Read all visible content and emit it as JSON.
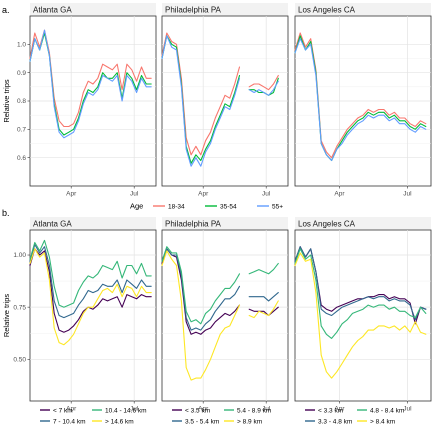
{
  "chart_data": [
    {
      "type": "line",
      "tag": "a.",
      "ylabel": "Relative trips",
      "ylim": [
        0.5,
        1.1
      ],
      "yticks": [
        0.6,
        0.7,
        0.8,
        0.9,
        1.0
      ],
      "ytick_labels": [
        "0.6",
        "0.7",
        "0.8",
        "0.9",
        "1.0"
      ],
      "xlim": [
        0,
        26
      ],
      "xticks": [
        {
          "x": 8.5,
          "label": "Apr"
        },
        {
          "x": 21.5,
          "label": "Jul"
        }
      ],
      "grid": true,
      "legend": {
        "title": "Age",
        "position": "bottom",
        "columns": 3
      },
      "series_meta": [
        {
          "name": "18-34",
          "color": "#F8766D"
        },
        {
          "name": "35-54",
          "color": "#00BA38"
        },
        {
          "name": "55+",
          "color": "#619CFF"
        }
      ],
      "facets": [
        {
          "title": "Atlanta GA",
          "x": [
            0,
            1,
            2,
            3,
            4,
            5,
            6,
            7,
            8,
            9,
            10,
            11,
            12,
            13,
            14,
            15,
            16,
            17,
            18,
            19,
            20,
            21,
            22,
            23,
            24,
            25
          ],
          "series": [
            [
              0.95,
              1.04,
              0.99,
              1.05,
              0.97,
              0.81,
              0.73,
              0.71,
              0.71,
              0.72,
              0.76,
              0.83,
              0.87,
              0.86,
              0.88,
              0.93,
              0.92,
              0.91,
              0.93,
              0.84,
              0.93,
              0.91,
              0.87,
              0.92,
              0.88,
              0.88
            ],
            [
              0.94,
              1.02,
              0.98,
              1.04,
              0.96,
              0.79,
              0.7,
              0.68,
              0.69,
              0.7,
              0.74,
              0.8,
              0.84,
              0.83,
              0.85,
              0.9,
              0.88,
              0.88,
              0.9,
              0.81,
              0.9,
              0.88,
              0.84,
              0.89,
              0.86,
              0.86
            ],
            [
              0.94,
              1.02,
              0.98,
              1.05,
              0.96,
              0.78,
              0.69,
              0.67,
              0.68,
              0.69,
              0.73,
              0.79,
              0.83,
              0.82,
              0.84,
              0.89,
              0.88,
              0.87,
              0.89,
              0.8,
              0.89,
              0.87,
              0.83,
              0.88,
              0.85,
              0.85
            ]
          ]
        },
        {
          "title": "Philadelphia PA",
          "x": [
            0,
            1,
            2,
            3,
            4,
            5,
            6,
            7,
            8,
            9,
            10,
            11,
            12,
            13,
            14,
            15,
            16,
            17,
            18,
            19,
            20,
            21,
            22,
            23,
            24,
            25
          ],
          "series": [
            [
              0.96,
              1.04,
              1.01,
              1.0,
              0.88,
              0.67,
              0.61,
              0.64,
              0.61,
              0.66,
              0.69,
              0.74,
              0.78,
              0.82,
              0.81,
              0.86,
              0.92,
              null,
              0.85,
              0.86,
              0.86,
              0.85,
              0.84,
              0.86,
              0.89,
              null
            ],
            [
              0.95,
              1.03,
              1.0,
              0.99,
              0.86,
              0.64,
              0.58,
              0.61,
              0.59,
              0.63,
              0.66,
              0.71,
              0.75,
              0.79,
              0.78,
              0.83,
              0.89,
              null,
              0.84,
              0.84,
              0.83,
              0.83,
              0.82,
              0.83,
              0.88,
              null
            ],
            [
              0.95,
              1.03,
              0.99,
              0.98,
              0.85,
              0.63,
              0.57,
              0.6,
              0.57,
              0.62,
              0.65,
              0.7,
              0.74,
              0.78,
              0.77,
              0.82,
              0.88,
              null,
              0.84,
              0.83,
              0.84,
              0.83,
              0.82,
              0.84,
              0.87,
              null
            ]
          ]
        },
        {
          "title": "Los Angeles CA",
          "x": [
            0,
            1,
            2,
            3,
            4,
            5,
            6,
            7,
            8,
            9,
            10,
            11,
            12,
            13,
            14,
            15,
            16,
            17,
            18,
            19,
            20,
            21,
            22,
            23,
            24,
            25
          ],
          "series": [
            [
              0.98,
              1.04,
              0.99,
              1.02,
              0.91,
              0.66,
              0.62,
              0.6,
              0.64,
              0.67,
              0.7,
              0.72,
              0.74,
              0.75,
              0.77,
              0.76,
              0.77,
              0.77,
              0.75,
              0.76,
              0.74,
              0.74,
              0.72,
              0.71,
              0.73,
              0.72
            ],
            [
              0.97,
              1.03,
              0.98,
              1.01,
              0.9,
              0.65,
              0.61,
              0.59,
              0.63,
              0.66,
              0.69,
              0.71,
              0.73,
              0.74,
              0.76,
              0.75,
              0.76,
              0.76,
              0.74,
              0.75,
              0.73,
              0.73,
              0.71,
              0.7,
              0.72,
              0.71
            ],
            [
              0.97,
              1.02,
              0.98,
              1.0,
              0.89,
              0.65,
              0.61,
              0.59,
              0.63,
              0.65,
              0.68,
              0.7,
              0.72,
              0.73,
              0.75,
              0.74,
              0.75,
              0.75,
              0.73,
              0.74,
              0.72,
              0.72,
              0.7,
              0.69,
              0.71,
              0.7
            ]
          ]
        }
      ]
    },
    {
      "type": "line",
      "tag": "b.",
      "ylabel": "Relative trips",
      "ylim": [
        0.3,
        1.12
      ],
      "yticks": [
        0.5,
        0.75,
        1.0
      ],
      "ytick_labels": [
        "0.50",
        "0.75",
        "1.00"
      ],
      "xlim": [
        0,
        26
      ],
      "xticks": [
        {
          "x": 8.5,
          "label": "Apr"
        },
        {
          "x": 21.5,
          "label": "Jul"
        }
      ],
      "grid": true,
      "legend": {
        "position": "bottom",
        "columns": 2
      },
      "facets": [
        {
          "title": "Atlanta GA",
          "legend_labels": [
            "< 7 km",
            "7 - 10.4 km",
            "10.4 - 14.6 km",
            "> 14.6 km"
          ],
          "colors": [
            "#440154",
            "#31688E",
            "#35B779",
            "#FDE725"
          ],
          "x": [
            0,
            1,
            2,
            3,
            4,
            5,
            6,
            7,
            8,
            9,
            10,
            11,
            12,
            13,
            14,
            15,
            16,
            17,
            18,
            19,
            20,
            21,
            22,
            23,
            24,
            25
          ],
          "series": [
            [
              0.95,
              1.03,
              1.0,
              1.02,
              0.92,
              0.72,
              0.64,
              0.63,
              0.64,
              0.66,
              0.69,
              0.73,
              0.75,
              0.74,
              0.76,
              0.79,
              0.78,
              0.79,
              0.8,
              0.75,
              0.81,
              0.8,
              0.79,
              0.81,
              0.8,
              0.8
            ],
            [
              0.97,
              1.05,
              1.01,
              1.04,
              0.95,
              0.78,
              0.71,
              0.7,
              0.71,
              0.72,
              0.76,
              0.79,
              0.83,
              0.82,
              0.83,
              0.86,
              0.85,
              0.85,
              0.88,
              0.82,
              0.88,
              0.86,
              0.84,
              0.88,
              0.85,
              0.85
            ],
            [
              0.98,
              1.06,
              1.02,
              1.07,
              0.99,
              0.85,
              0.76,
              0.75,
              0.76,
              0.77,
              0.83,
              0.87,
              0.9,
              0.89,
              0.91,
              0.95,
              0.94,
              0.93,
              0.97,
              0.89,
              0.95,
              0.95,
              0.91,
              0.96,
              0.9,
              0.9
            ],
            [
              0.96,
              1.03,
              0.99,
              1.01,
              0.88,
              0.65,
              0.58,
              0.57,
              0.59,
              0.62,
              0.67,
              0.72,
              0.75,
              0.75,
              0.79,
              0.83,
              0.84,
              0.82,
              0.86,
              0.8,
              0.85,
              0.84,
              0.8,
              0.85,
              0.82,
              0.82
            ]
          ]
        },
        {
          "title": "Philadelphia PA",
          "legend_labels": [
            "< 3.5 km",
            "3.5 - 5.4 km",
            "5.4 - 8.9 km",
            "> 8.9 km"
          ],
          "colors": [
            "#440154",
            "#31688E",
            "#35B779",
            "#FDE725"
          ],
          "x": [
            0,
            1,
            2,
            3,
            4,
            5,
            6,
            7,
            8,
            9,
            10,
            11,
            12,
            13,
            14,
            15,
            16,
            17,
            18,
            19,
            20,
            21,
            22,
            23,
            24,
            25
          ],
          "series": [
            [
              0.96,
              1.03,
              1.0,
              0.99,
              0.88,
              0.68,
              0.62,
              0.63,
              0.62,
              0.64,
              0.65,
              0.68,
              0.7,
              0.72,
              0.71,
              0.73,
              0.76,
              null,
              0.74,
              0.73,
              0.73,
              0.73,
              0.71,
              0.73,
              0.75,
              null
            ],
            [
              0.97,
              1.03,
              1.0,
              1.0,
              0.9,
              0.7,
              0.64,
              0.65,
              0.64,
              0.67,
              0.69,
              0.73,
              0.76,
              0.79,
              0.79,
              0.81,
              0.85,
              null,
              0.8,
              0.8,
              0.8,
              0.8,
              0.78,
              0.8,
              0.82,
              null
            ],
            [
              0.97,
              1.04,
              1.01,
              1.01,
              0.92,
              0.73,
              0.68,
              0.69,
              0.67,
              0.72,
              0.74,
              0.78,
              0.81,
              0.84,
              0.84,
              0.87,
              0.91,
              null,
              0.91,
              0.92,
              0.93,
              0.92,
              0.91,
              0.93,
              0.96,
              null
            ],
            [
              0.95,
              1.02,
              0.98,
              0.95,
              0.78,
              0.46,
              0.4,
              0.41,
              0.41,
              0.45,
              0.5,
              0.56,
              0.62,
              0.65,
              0.66,
              0.71,
              0.76,
              null,
              0.71,
              0.7,
              0.73,
              0.72,
              0.71,
              0.74,
              0.78,
              null
            ]
          ]
        },
        {
          "title": "Los Angeles CA",
          "legend_labels": [
            "< 3.3 km",
            "3.3 - 4.8 km",
            "4.8 - 8.4 km",
            "> 8.4 km"
          ],
          "colors": [
            "#440154",
            "#31688E",
            "#35B779",
            "#FDE725"
          ],
          "x": [
            0,
            1,
            2,
            3,
            4,
            5,
            6,
            7,
            8,
            9,
            10,
            11,
            12,
            13,
            14,
            15,
            16,
            17,
            18,
            19,
            20,
            21,
            22,
            23,
            24,
            25
          ],
          "series": [
            [
              0.97,
              1.04,
              0.99,
              1.03,
              0.92,
              0.76,
              0.74,
              0.73,
              0.75,
              0.76,
              0.77,
              0.78,
              0.79,
              0.79,
              0.8,
              0.8,
              0.81,
              0.81,
              0.79,
              0.8,
              0.79,
              0.79,
              0.77,
              0.67,
              0.75,
              0.74
            ],
            [
              0.97,
              1.04,
              0.99,
              1.03,
              0.92,
              0.74,
              0.72,
              0.71,
              0.73,
              0.75,
              0.76,
              0.77,
              0.78,
              0.79,
              0.8,
              0.79,
              0.8,
              0.8,
              0.78,
              0.79,
              0.78,
              0.78,
              0.76,
              0.69,
              0.75,
              0.74
            ],
            [
              0.96,
              1.03,
              0.98,
              1.0,
              0.88,
              0.66,
              0.62,
              0.6,
              0.63,
              0.67,
              0.69,
              0.72,
              0.73,
              0.74,
              0.76,
              0.75,
              0.76,
              0.76,
              0.74,
              0.75,
              0.73,
              0.73,
              0.71,
              0.7,
              0.75,
              0.72
            ],
            [
              0.95,
              1.01,
              0.97,
              0.98,
              0.82,
              0.52,
              0.44,
              0.41,
              0.44,
              0.48,
              0.52,
              0.56,
              0.59,
              0.61,
              0.64,
              0.64,
              0.66,
              0.66,
              0.65,
              0.66,
              0.64,
              0.66,
              0.63,
              0.68,
              0.63,
              0.62
            ]
          ]
        }
      ]
    }
  ]
}
